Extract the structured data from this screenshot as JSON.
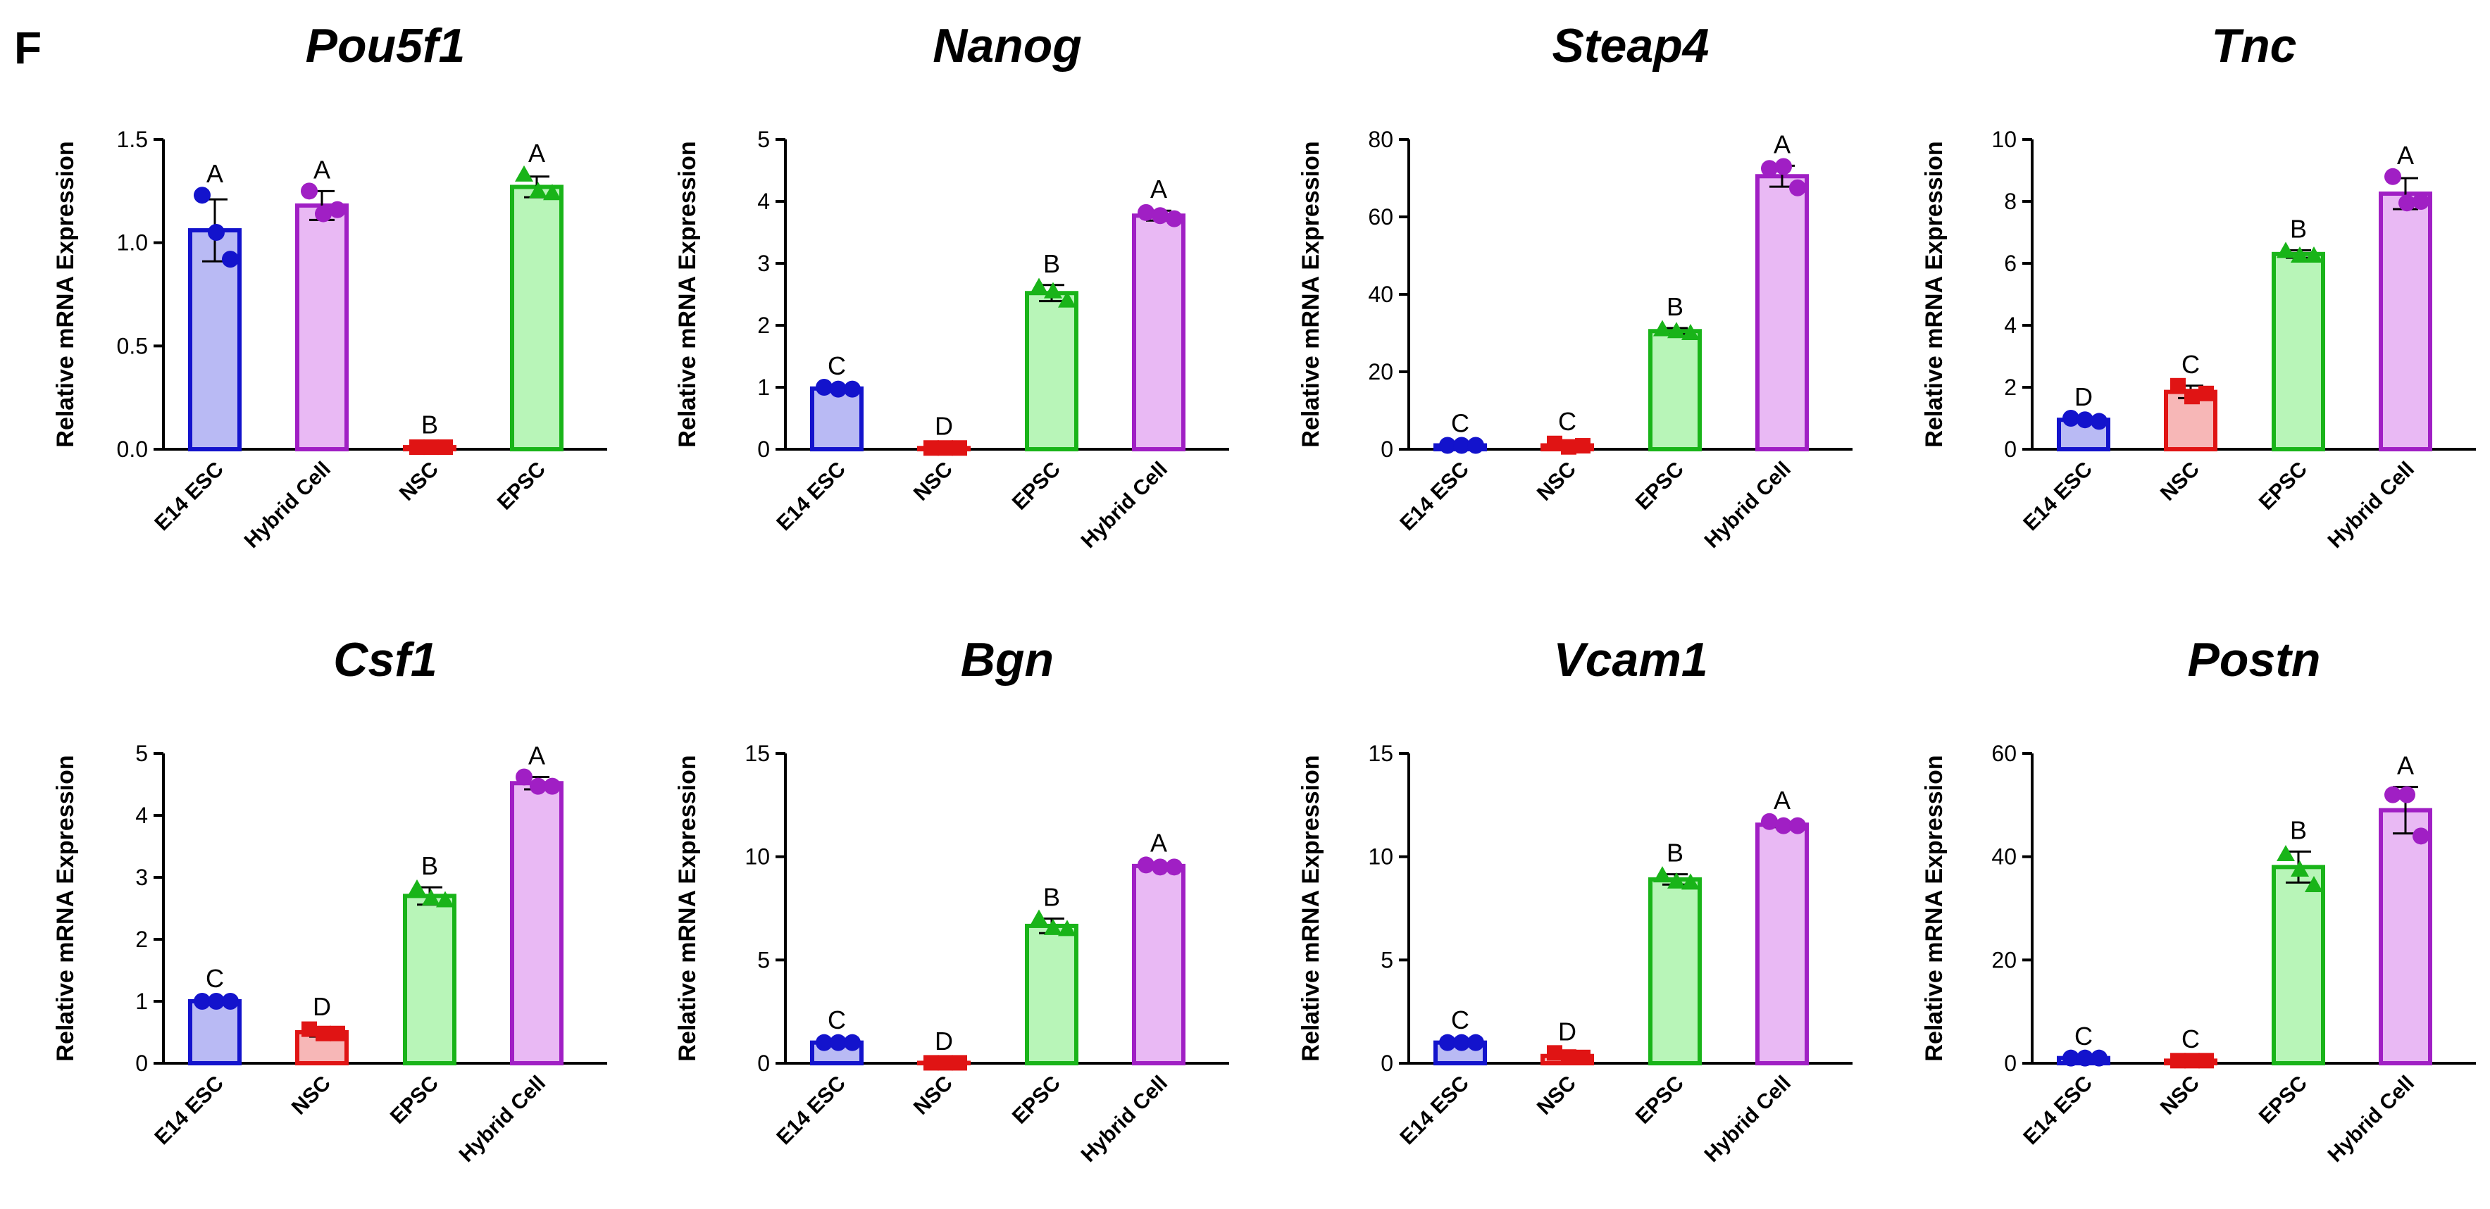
{
  "panel_label": "F",
  "y_axis_label": "Relative mRNA Expression",
  "colors": {
    "E14 ESC": {
      "fill": "#b9baf4",
      "stroke": "#1313cc"
    },
    "Hybrid Cell": {
      "fill": "#e9b9f4",
      "stroke": "#a01fc4"
    },
    "NSC": {
      "fill": "#f7b7b7",
      "stroke": "#e01414"
    },
    "EPSC": {
      "fill": "#b8f5b8",
      "stroke": "#19b419"
    }
  },
  "chart_data": [
    {
      "type": "bar",
      "title": "Pou5f1",
      "categories": [
        "E14 ESC",
        "Hybrid Cell",
        "NSC",
        "EPSC"
      ],
      "values": [
        1.06,
        1.18,
        0.01,
        1.27
      ],
      "errors": [
        0.15,
        0.07,
        0.005,
        0.05
      ],
      "points": [
        [
          1.23,
          1.05,
          0.92
        ],
        [
          1.25,
          1.14,
          1.16
        ],
        [
          0.01,
          0.01,
          0.01
        ],
        [
          1.33,
          1.25,
          1.24
        ]
      ],
      "letters": [
        "A",
        "A",
        "B",
        "A"
      ],
      "ylim": [
        0,
        1.5
      ],
      "yticks": [
        0,
        0.5,
        1.0,
        1.5
      ],
      "yticklabels": [
        "0.0",
        "0.5",
        "1.0",
        "1.5"
      ]
    },
    {
      "type": "bar",
      "title": "Nanog",
      "categories": [
        "E14 ESC",
        "NSC",
        "EPSC",
        "Hybrid Cell"
      ],
      "values": [
        0.98,
        0.02,
        2.52,
        3.77
      ],
      "errors": [
        0.02,
        0.01,
        0.13,
        0.08
      ],
      "points": [
        [
          1.0,
          0.97,
          0.97
        ],
        [
          0.02,
          0.02,
          0.02
        ],
        [
          2.62,
          2.55,
          2.4
        ],
        [
          3.82,
          3.77,
          3.72
        ]
      ],
      "letters": [
        "C",
        "D",
        "B",
        "A"
      ],
      "ylim": [
        0,
        5
      ],
      "yticks": [
        0,
        1,
        2,
        3,
        4,
        5
      ],
      "yticklabels": [
        "0",
        "1",
        "2",
        "3",
        "4",
        "5"
      ]
    },
    {
      "type": "bar",
      "title": "Steap4",
      "categories": [
        "E14 ESC",
        "NSC",
        "EPSC",
        "Hybrid Cell"
      ],
      "values": [
        1.0,
        1.0,
        30.5,
        70.5
      ],
      "errors": [
        0.2,
        0.6,
        0.8,
        2.7
      ],
      "points": [
        [
          1.0,
          1.0,
          1.0
        ],
        [
          1.5,
          0.6,
          0.9
        ],
        [
          31.0,
          30.5,
          30.0
        ],
        [
          72.5,
          73.0,
          67.5
        ]
      ],
      "letters": [
        "C",
        "C",
        "B",
        "A"
      ],
      "ylim": [
        0,
        80
      ],
      "yticks": [
        0,
        20,
        40,
        60,
        80
      ],
      "yticklabels": [
        "0",
        "20",
        "40",
        "60",
        "80"
      ]
    },
    {
      "type": "bar",
      "title": "Tnc",
      "categories": [
        "E14 ESC",
        "NSC",
        "EPSC",
        "Hybrid Cell"
      ],
      "values": [
        0.95,
        1.85,
        6.3,
        8.25
      ],
      "errors": [
        0.05,
        0.2,
        0.12,
        0.5
      ],
      "points": [
        [
          1.0,
          0.95,
          0.9
        ],
        [
          2.05,
          1.7,
          1.8
        ],
        [
          6.4,
          6.25,
          6.25
        ],
        [
          8.8,
          7.95,
          8.0
        ]
      ],
      "letters": [
        "D",
        "C",
        "B",
        "A"
      ],
      "ylim": [
        0,
        10
      ],
      "yticks": [
        0,
        2,
        4,
        6,
        8,
        10
      ],
      "yticklabels": [
        "0",
        "2",
        "4",
        "6",
        "8",
        "10"
      ]
    },
    {
      "type": "bar",
      "title": "Csf1",
      "categories": [
        "E14 ESC",
        "NSC",
        "EPSC",
        "Hybrid Cell"
      ],
      "values": [
        1.0,
        0.5,
        2.7,
        4.52
      ],
      "errors": [
        0.02,
        0.07,
        0.14,
        0.1
      ],
      "points": [
        [
          1.0,
          1.0,
          1.0
        ],
        [
          0.55,
          0.48,
          0.48
        ],
        [
          2.82,
          2.66,
          2.63
        ],
        [
          4.62,
          4.47,
          4.47
        ]
      ],
      "letters": [
        "C",
        "D",
        "B",
        "A"
      ],
      "ylim": [
        0,
        5
      ],
      "yticks": [
        0,
        1,
        2,
        3,
        4,
        5
      ],
      "yticklabels": [
        "0",
        "1",
        "2",
        "3",
        "4",
        "5"
      ]
    },
    {
      "type": "bar",
      "title": "Bgn",
      "categories": [
        "E14 ESC",
        "NSC",
        "EPSC",
        "Hybrid Cell"
      ],
      "values": [
        1.0,
        0.02,
        6.65,
        9.55
      ],
      "errors": [
        0.05,
        0.01,
        0.35,
        0.08
      ],
      "points": [
        [
          1.0,
          1.0,
          1.0
        ],
        [
          0.02,
          0.02,
          0.02
        ],
        [
          7.0,
          6.55,
          6.5
        ],
        [
          9.6,
          9.5,
          9.5
        ]
      ],
      "letters": [
        "C",
        "D",
        "B",
        "A"
      ],
      "ylim": [
        0,
        15
      ],
      "yticks": [
        0,
        5,
        10,
        15
      ],
      "yticklabels": [
        "0",
        "5",
        "10",
        "15"
      ]
    },
    {
      "type": "bar",
      "title": "Vcam1",
      "categories": [
        "E14 ESC",
        "NSC",
        "EPSC",
        "Hybrid Cell"
      ],
      "values": [
        1.0,
        0.35,
        8.9,
        11.55
      ],
      "errors": [
        0.05,
        0.1,
        0.25,
        0.12
      ],
      "points": [
        [
          1.0,
          1.0,
          1.0
        ],
        [
          0.5,
          0.3,
          0.28
        ],
        [
          9.1,
          8.8,
          8.75
        ],
        [
          11.7,
          11.5,
          11.5
        ]
      ],
      "letters": [
        "C",
        "D",
        "B",
        "A"
      ],
      "ylim": [
        0,
        15
      ],
      "yticks": [
        0,
        5,
        10,
        15
      ],
      "yticklabels": [
        "0",
        "5",
        "10",
        "15"
      ]
    },
    {
      "type": "bar",
      "title": "Postn",
      "categories": [
        "E14 ESC",
        "NSC",
        "EPSC",
        "Hybrid Cell"
      ],
      "values": [
        1.0,
        0.5,
        38.0,
        49.0
      ],
      "errors": [
        0.1,
        0.05,
        3.0,
        4.5
      ],
      "points": [
        [
          1.0,
          1.0,
          1.0
        ],
        [
          0.5,
          0.5,
          0.5
        ],
        [
          40.5,
          37.5,
          34.5
        ],
        [
          52.0,
          52.0,
          44.0
        ]
      ],
      "letters": [
        "C",
        "C",
        "B",
        "A"
      ],
      "ylim": [
        0,
        60
      ],
      "yticks": [
        0,
        20,
        40,
        60
      ],
      "yticklabels": [
        "0",
        "20",
        "40",
        "60"
      ]
    }
  ]
}
